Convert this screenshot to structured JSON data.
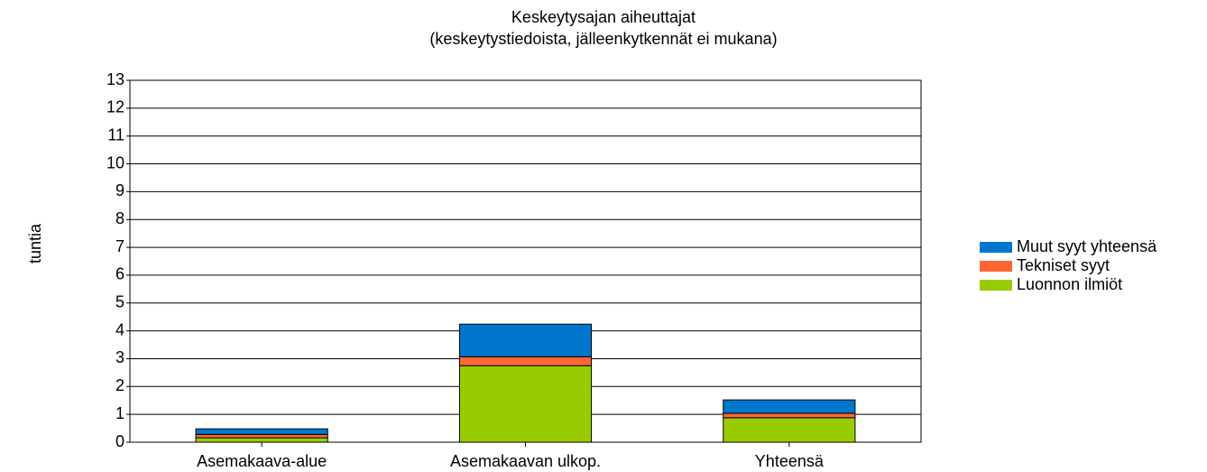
{
  "chart_data": {
    "type": "stacked_bar",
    "title": "Keskeytysajan aiheuttajat",
    "subtitle": "(keskeytystiedoista, jälleenkytkennät ei mukana)",
    "y_label": "tuntia",
    "categories": [
      "Asemakaava-alue",
      "Asemakaavan ulkop.",
      "Yhteensä"
    ],
    "series": [
      {
        "name": "Luonnon ilmiöt",
        "color": "#99cc00",
        "values": [
          0.16,
          2.75,
          0.88
        ]
      },
      {
        "name": "Tekniset syyt",
        "color": "#ff6633",
        "values": [
          0.12,
          0.32,
          0.16
        ]
      },
      {
        "name": "Muut syyt yhteensä",
        "color": "#0077cc",
        "values": [
          0.2,
          1.17,
          0.48
        ]
      }
    ],
    "ylim": [
      0,
      13
    ],
    "yticks": [
      0,
      1,
      2,
      3,
      4,
      5,
      6,
      7,
      8,
      9,
      10,
      11,
      12,
      13
    ],
    "grid": true,
    "legend": "right"
  }
}
